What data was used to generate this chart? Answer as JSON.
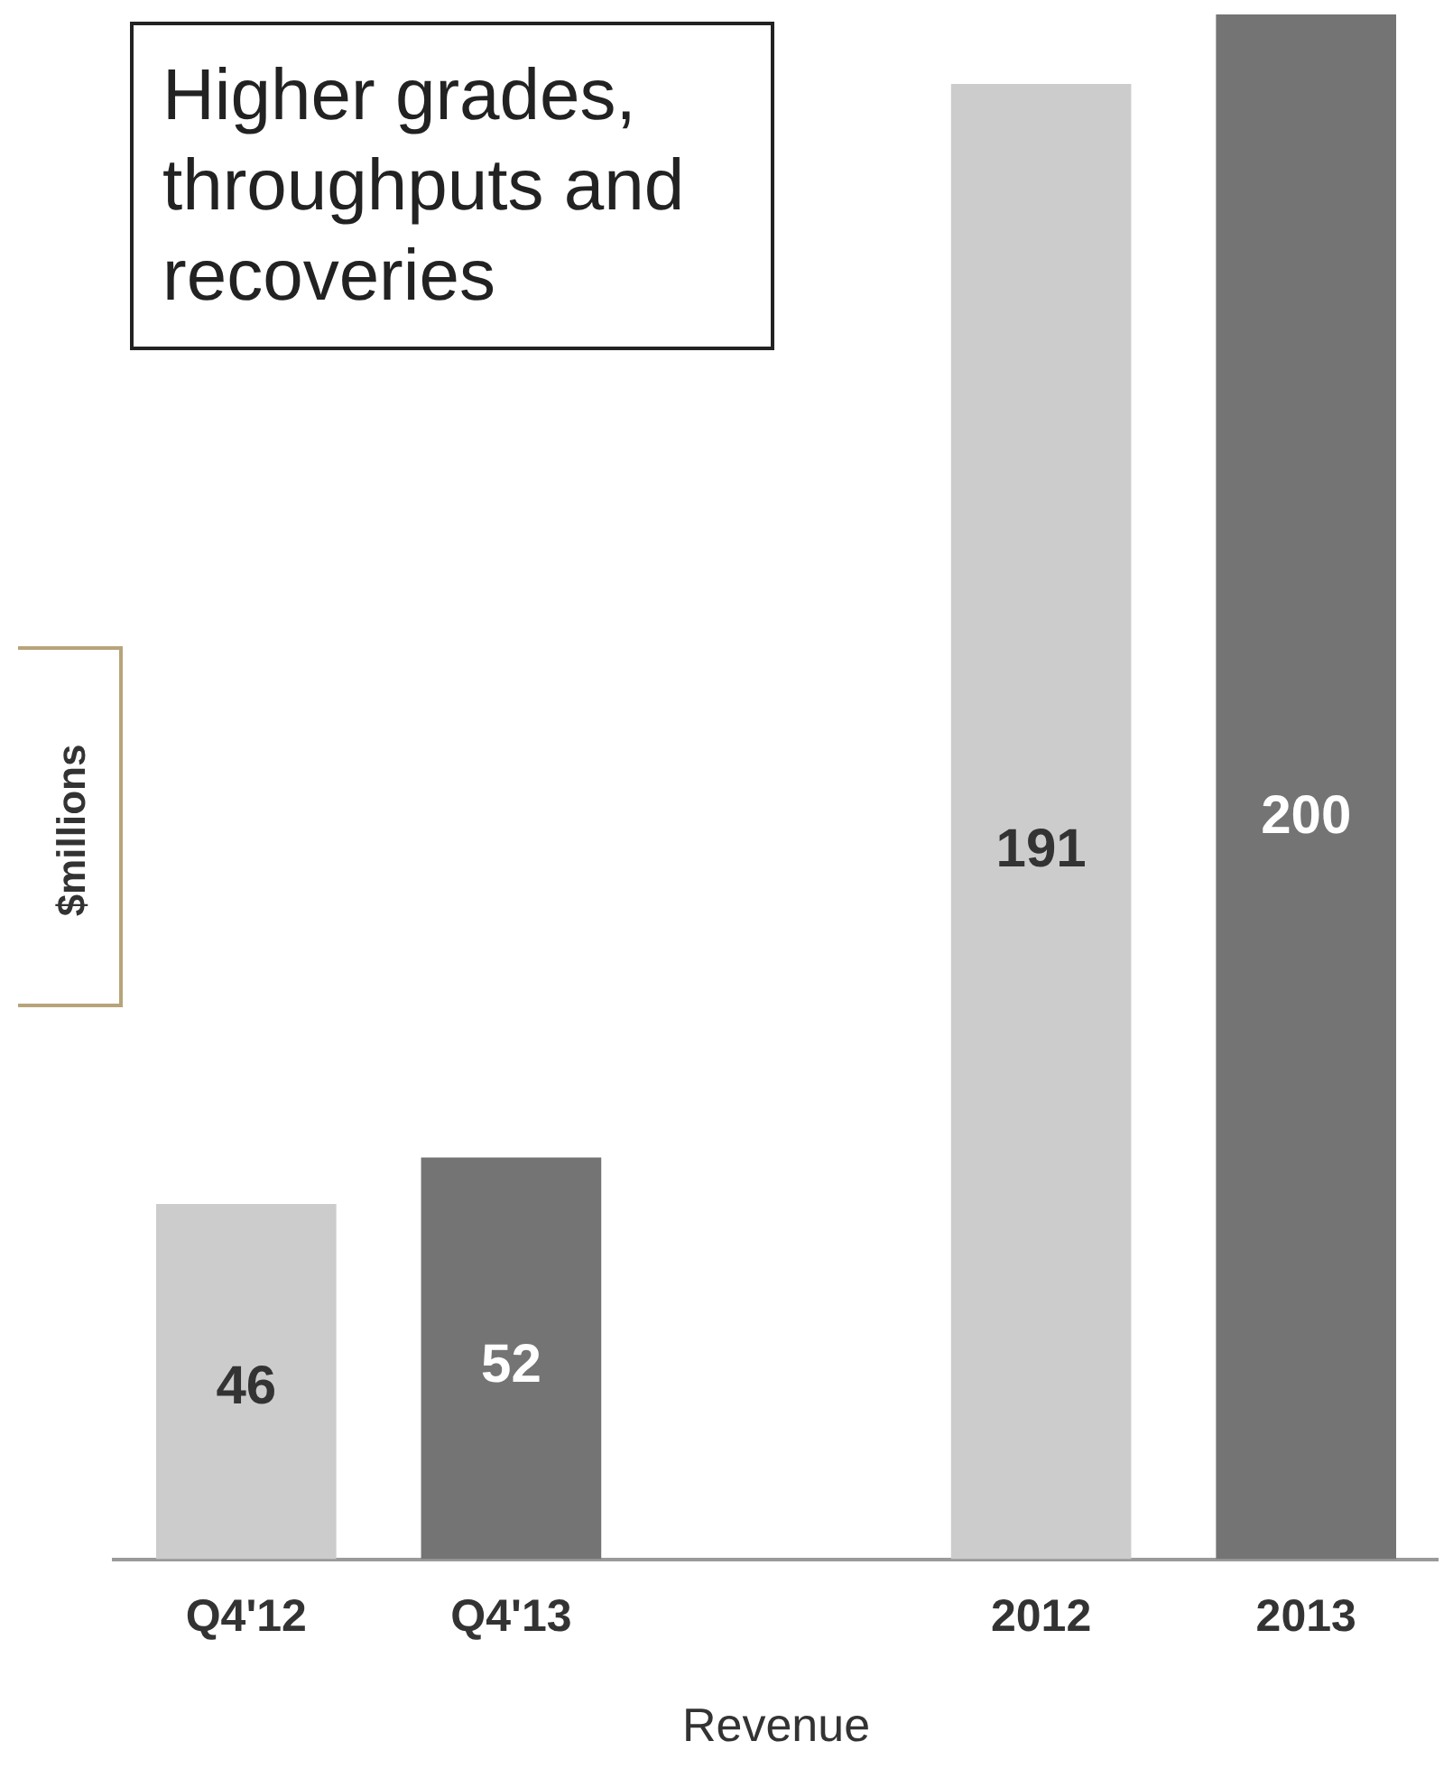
{
  "chart_data": {
    "type": "bar",
    "categories": [
      "Q4'12",
      "Q4'13",
      null,
      "2012",
      "2013"
    ],
    "values": [
      46,
      52,
      null,
      191,
      200
    ],
    "colors": [
      "#cccccc",
      "#747474",
      "#cccccc",
      "#cccccc",
      "#747474"
    ],
    "xlabel": "Revenue",
    "ylabel": "$millions",
    "annotations": [
      "Higher grades, throughputs and recoveries"
    ],
    "data_labels": true,
    "grid": false,
    "legend": false
  }
}
